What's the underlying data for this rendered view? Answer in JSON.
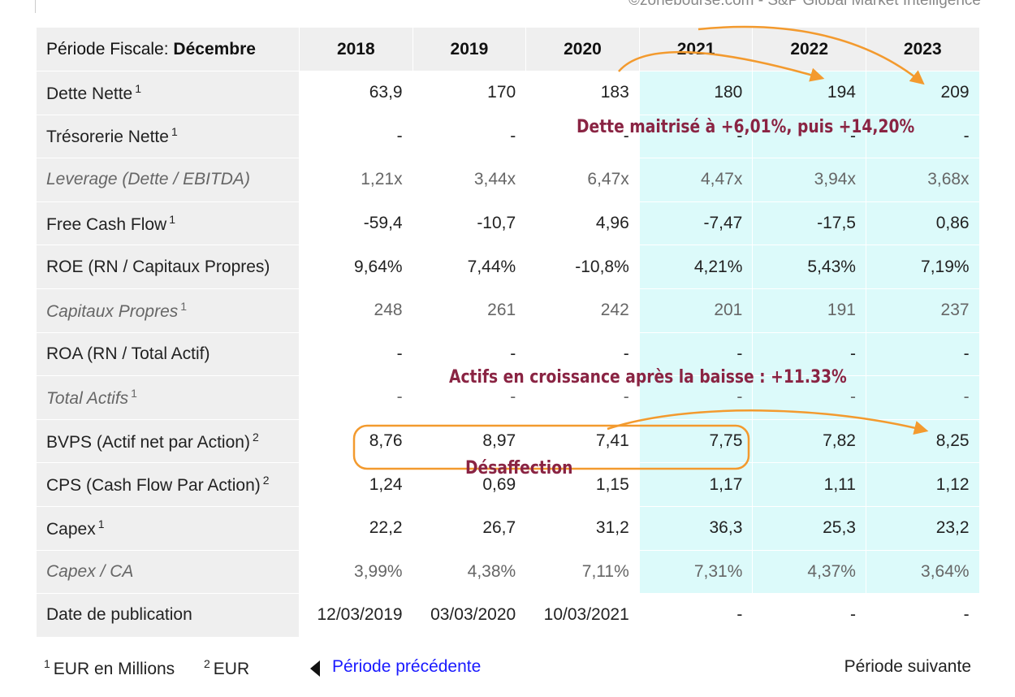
{
  "source": "©zonebourse.com - S&P Global Market Intelligence",
  "header": {
    "label_prefix": "Période Fiscale:",
    "label_bold": "Décembre",
    "years": [
      "2018",
      "2019",
      "2020",
      "2021",
      "2022",
      "2023"
    ]
  },
  "rows": [
    {
      "label": "Dette Nette",
      "sup": "1",
      "italic": false,
      "values": [
        "63,9",
        "170",
        "183",
        "180",
        "194",
        "209"
      ]
    },
    {
      "label": "Trésorerie Nette",
      "sup": "1",
      "italic": false,
      "values": [
        "-",
        "-",
        "-",
        "-",
        "-",
        "-"
      ]
    },
    {
      "label": "Leverage (Dette / EBITDA)",
      "sup": "",
      "italic": true,
      "values": [
        "1,21x",
        "3,44x",
        "6,47x",
        "4,47x",
        "3,94x",
        "3,68x"
      ]
    },
    {
      "label": "Free Cash Flow",
      "sup": "1",
      "italic": false,
      "values": [
        "-59,4",
        "-10,7",
        "4,96",
        "-7,47",
        "-17,5",
        "0,86"
      ]
    },
    {
      "label": "ROE (RN / Capitaux Propres)",
      "sup": "",
      "italic": false,
      "values": [
        "9,64%",
        "7,44%",
        "-10,8%",
        "4,21%",
        "5,43%",
        "7,19%"
      ]
    },
    {
      "label": "Capitaux Propres",
      "sup": "1",
      "italic": true,
      "values": [
        "248",
        "261",
        "242",
        "201",
        "191",
        "237"
      ]
    },
    {
      "label": "ROA (RN / Total Actif)",
      "sup": "",
      "italic": false,
      "values": [
        "-",
        "-",
        "-",
        "-",
        "-",
        "-"
      ]
    },
    {
      "label": "Total Actifs",
      "sup": "1",
      "italic": true,
      "values": [
        "-",
        "-",
        "-",
        "-",
        "-",
        "-"
      ]
    },
    {
      "label": "BVPS (Actif net par Action)",
      "sup": "2",
      "italic": false,
      "values": [
        "8,76",
        "8,97",
        "7,41",
        "7,75",
        "7,82",
        "8,25"
      ]
    },
    {
      "label": "CPS (Cash Flow Par Action)",
      "sup": "2",
      "italic": false,
      "values": [
        "1,24",
        "0,69",
        "1,15",
        "1,17",
        "1,11",
        "1,12"
      ]
    },
    {
      "label": "Capex",
      "sup": "1",
      "italic": false,
      "values": [
        "22,2",
        "26,7",
        "31,2",
        "36,3",
        "25,3",
        "23,2"
      ]
    },
    {
      "label": "Capex / CA",
      "sup": "",
      "italic": true,
      "values": [
        "3,99%",
        "4,38%",
        "7,11%",
        "7,31%",
        "4,37%",
        "3,64%"
      ]
    },
    {
      "label": "Date de publication",
      "sup": "",
      "italic": false,
      "values": [
        "12/03/2019",
        "03/03/2020",
        "10/03/2021",
        "-",
        "-",
        "-"
      ]
    }
  ],
  "footer": {
    "note1_sup": "1",
    "note1": "EUR en Millions",
    "note2_sup": "2",
    "note2": "EUR",
    "prev_label": "Période précédente",
    "next_label": "Période suivante"
  },
  "annotations": {
    "debt": "Dette maitrisé à +6,01%, puis +14,20%",
    "assets": "Actifs en croissance après la baisse : +11.33%",
    "disaffection": "Désaffection"
  },
  "colors": {
    "projection_bg": "#dcfafa",
    "label_bg": "#efefef",
    "annotation_text": "#8a2443",
    "annotation_stroke": "#f39a2e",
    "link": "#1a1aff"
  }
}
